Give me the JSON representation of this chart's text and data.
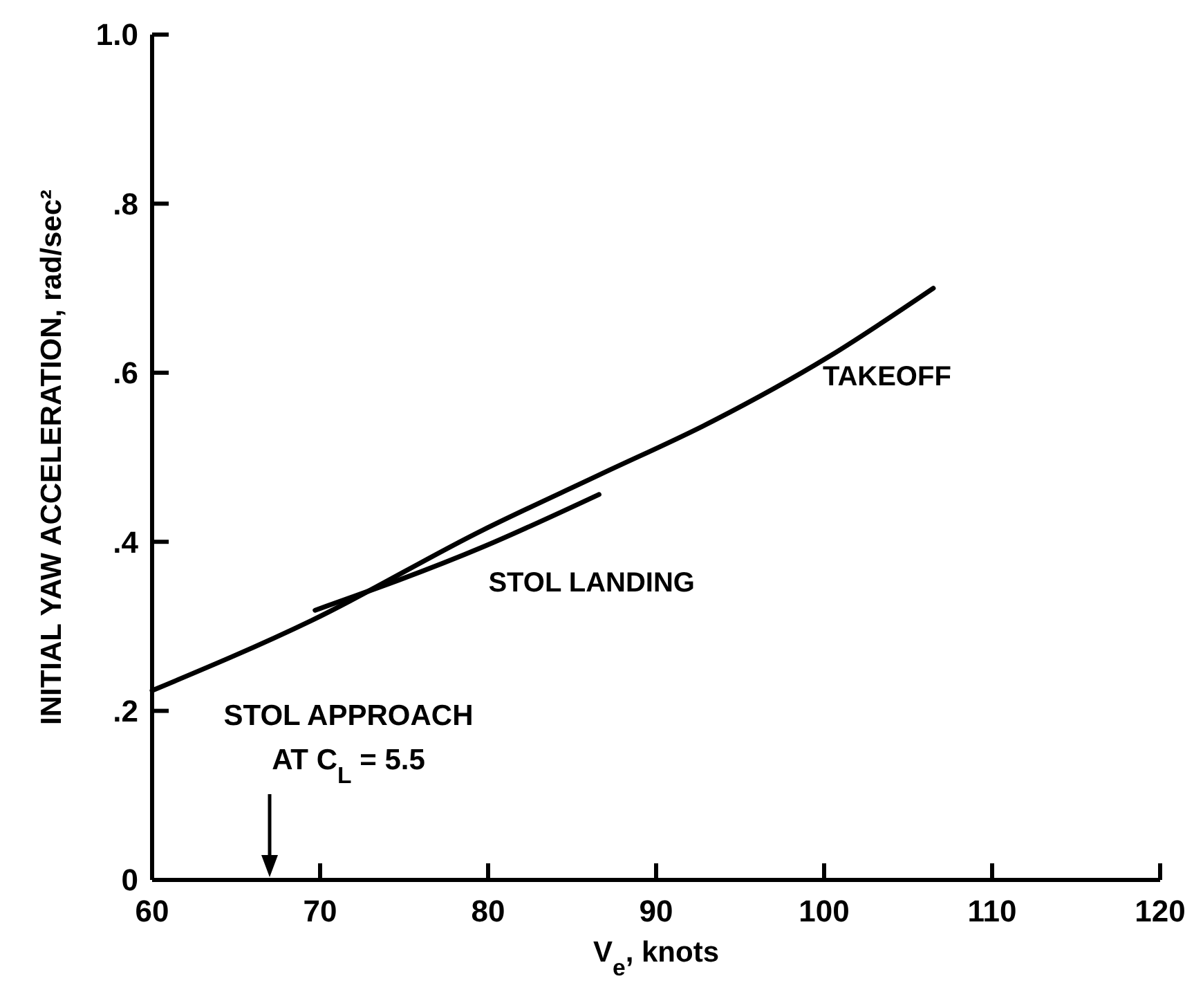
{
  "chart_data": {
    "type": "line",
    "xlabel": "V$_{e}$, knots",
    "ylabel": "INITIAL YAW ACCELERATION, rad/sec²",
    "xlim": [
      60,
      120
    ],
    "xticks": [
      60,
      70,
      80,
      90,
      100,
      110,
      120
    ],
    "ylim": [
      0,
      1.0
    ],
    "yticks": [
      0,
      {
        "value": 0.2,
        "label": ".2"
      },
      {
        "value": 0.4,
        "label": ".4"
      },
      {
        "value": 0.6,
        "label": ".6"
      },
      {
        "value": 0.8,
        "label": ".8"
      },
      {
        "value": 1.0,
        "label": "1.0"
      }
    ],
    "series": [
      {
        "name": "TAKEOFF",
        "color": "#000000",
        "x": [
          60,
          69.5,
          79.7,
          86.6,
          93.4,
          100.2,
          106.5
        ],
        "values": [
          0.224,
          0.307,
          0.414,
          0.479,
          0.543,
          0.618,
          0.7
        ]
      },
      {
        "name": "STOL LANDING",
        "color": "#000000",
        "x": [
          69.7,
          79.7,
          86.6
        ],
        "values": [
          0.319,
          0.394,
          0.456
        ]
      }
    ],
    "annotations": [
      "STOL APPROACH\nAT C$_{L}$ = 5.5"
    ],
    "grid": false,
    "marker": "none",
    "line_style": "solid"
  }
}
